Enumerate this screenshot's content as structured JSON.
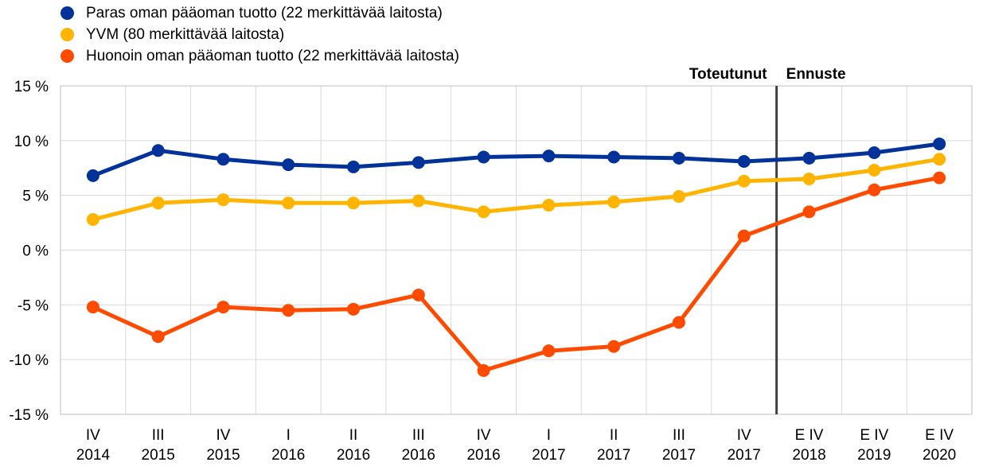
{
  "chart_data": {
    "type": "line",
    "legend_placement": "top-left",
    "grid": true,
    "categories": [
      [
        "IV",
        "2014"
      ],
      [
        "III",
        "2015"
      ],
      [
        "IV",
        "2015"
      ],
      [
        "I",
        "2016"
      ],
      [
        "II",
        "2016"
      ],
      [
        "III",
        "2016"
      ],
      [
        "IV",
        "2016"
      ],
      [
        "I",
        "2017"
      ],
      [
        "II",
        "2017"
      ],
      [
        "III",
        "2017"
      ],
      [
        "IV",
        "2017"
      ],
      [
        "E IV",
        "2018"
      ],
      [
        "E IV",
        "2019"
      ],
      [
        "E IV",
        "2020"
      ]
    ],
    "y_ticks": [
      "15 %",
      "10 %",
      "5 %",
      "0 %",
      "-5 %",
      "-10 %",
      "-15 %"
    ],
    "ylim": [
      -15,
      15
    ],
    "y_tick_step": 5,
    "series": [
      {
        "name": "Paras oman pääoman tuotto (22 merkittävää laitosta)",
        "color": "#003299",
        "values": [
          6.8,
          9.1,
          8.3,
          7.8,
          7.6,
          8.0,
          8.5,
          8.6,
          8.5,
          8.4,
          8.1,
          8.4,
          8.9,
          9.7
        ]
      },
      {
        "name": "YVM (80 merkittävää laitosta)",
        "color": "#FFB400",
        "values": [
          2.8,
          4.3,
          4.6,
          4.3,
          4.3,
          4.5,
          3.5,
          4.1,
          4.4,
          4.9,
          6.3,
          6.5,
          7.3,
          8.3
        ]
      },
      {
        "name": "Huonoin oman pääoman tuotto (22 merkittävää laitosta)",
        "color": "#FF4B00",
        "values": [
          -5.2,
          -7.9,
          -5.2,
          -5.5,
          -5.4,
          -4.1,
          -11.0,
          -9.2,
          -8.8,
          -6.6,
          1.3,
          3.5,
          5.5,
          6.6
        ]
      }
    ],
    "annotations": {
      "realized": "Toteutunut",
      "forecast": "Ennuste",
      "divider_after_index": 10
    }
  }
}
